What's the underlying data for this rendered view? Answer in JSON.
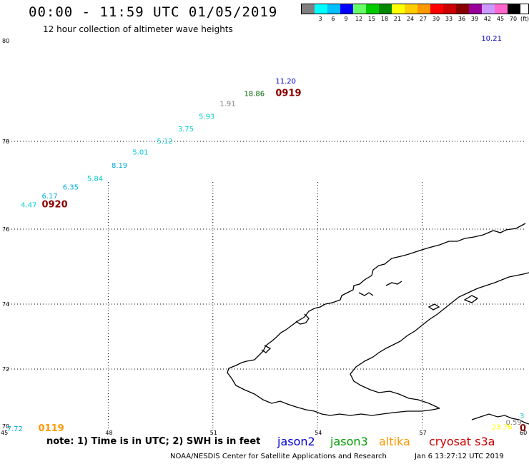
{
  "header": {
    "title": "00:00 - 11:59 UTC 01/05/2019",
    "subtitle": "12 hour collection of altimeter wave heights"
  },
  "color_scale": {
    "labels": [
      "3",
      "6",
      "9",
      "12",
      "15",
      "18",
      "21",
      "24",
      "27",
      "30",
      "33",
      "36",
      "39",
      "42",
      "45",
      "70"
    ],
    "unit": "(ft)",
    "colors": [
      "#808080",
      "#00ffff",
      "#00bfff",
      "#0000ff",
      "#66ff66",
      "#00cc00",
      "#008800",
      "#ffff00",
      "#ffcc00",
      "#ff9900",
      "#ff0000",
      "#cc0000",
      "#880000",
      "#990099",
      "#cc99ff",
      "#ff66cc",
      "#000000"
    ]
  },
  "map": {
    "lat_ticks": [
      {
        "label": "80",
        "lat": 80
      },
      {
        "label": "78",
        "lat": 78
      },
      {
        "label": "76",
        "lat": 76
      },
      {
        "label": "74",
        "lat": 74
      },
      {
        "label": "72",
        "lat": 72
      },
      {
        "label": "70",
        "lat": 70
      }
    ],
    "lon_ticks": [
      {
        "label": "45",
        "lon": 45
      },
      {
        "label": "48",
        "lon": 48
      },
      {
        "label": "51",
        "lon": 51
      },
      {
        "label": "54",
        "lon": 54
      },
      {
        "label": "57",
        "lon": 57
      },
      {
        "label": "60",
        "lon": 60
      }
    ],
    "wave_heights": [
      {
        "value": "4.47",
        "lon": 45.7,
        "lat": 76.5,
        "color": "#00cccc"
      },
      {
        "value": "6.17",
        "lon": 46.3,
        "lat": 76.7,
        "color": "#00aadd"
      },
      {
        "value": "6.35",
        "lon": 46.9,
        "lat": 76.9,
        "color": "#00aadd"
      },
      {
        "value": "5.84",
        "lon": 47.6,
        "lat": 77.1,
        "color": "#00cccc"
      },
      {
        "value": "8.19",
        "lon": 48.3,
        "lat": 77.4,
        "color": "#00aadd"
      },
      {
        "value": "5.01",
        "lon": 48.9,
        "lat": 77.7,
        "color": "#00cccc"
      },
      {
        "value": "5.12",
        "lon": 49.6,
        "lat": 77.95,
        "color": "#00cccc"
      },
      {
        "value": "3.75",
        "lon": 50.2,
        "lat": 78.2,
        "color": "#00cccc"
      },
      {
        "value": "5.93",
        "lon": 50.8,
        "lat": 78.45,
        "color": "#00cccc"
      },
      {
        "value": "1.91",
        "lon": 51.4,
        "lat": 78.7,
        "color": "#808080"
      },
      {
        "value": "18.86",
        "lon": 52.1,
        "lat": 78.9,
        "color": "#006600"
      },
      {
        "value": "11.20",
        "lon": 53.0,
        "lat": 79.15,
        "color": "#0000cc"
      },
      {
        "value": "10.21",
        "lon": 58.9,
        "lat": 80.0,
        "color": "#0000cc"
      },
      {
        "value": "7.72",
        "lon": 45.3,
        "lat": 70.04,
        "color": "#00aadd"
      },
      {
        "value": "0.59",
        "lon": 59.6,
        "lat": 70.25,
        "color": "#808080"
      },
      {
        "value": "23.76",
        "lon": 59.2,
        "lat": 70.1,
        "color": "#ffff00"
      },
      {
        "value": "3",
        "lon": 60.0,
        "lat": 70.45,
        "color": "#00cccc"
      }
    ],
    "time_labels": [
      {
        "value": "0920",
        "lon": 46.3,
        "lat": 76.5,
        "color": "#880000"
      },
      {
        "value": "0919",
        "lon": 53.0,
        "lat": 78.9,
        "color": "#880000"
      },
      {
        "value": "0119",
        "lon": 46.2,
        "lat": 70.04,
        "color": "#ff9900"
      },
      {
        "value": "0",
        "lon": 60.0,
        "lat": 70.05,
        "color": "#880000"
      }
    ]
  },
  "footer": {
    "note": "note: 1) Time is in UTC; 2) SWH is in feet",
    "satellites": [
      {
        "label": "jason2",
        "color": "#0000cc"
      },
      {
        "label": "jason3",
        "color": "#009900"
      },
      {
        "label": "altika",
        "color": "#ff9900"
      },
      {
        "label": "cryosat s3a",
        "color": "#cc0000"
      }
    ],
    "credit": "NOAA/NESDIS Center for Satellite Applications and Research",
    "date": "Jan  6 13:27:12 UTC 2019"
  }
}
